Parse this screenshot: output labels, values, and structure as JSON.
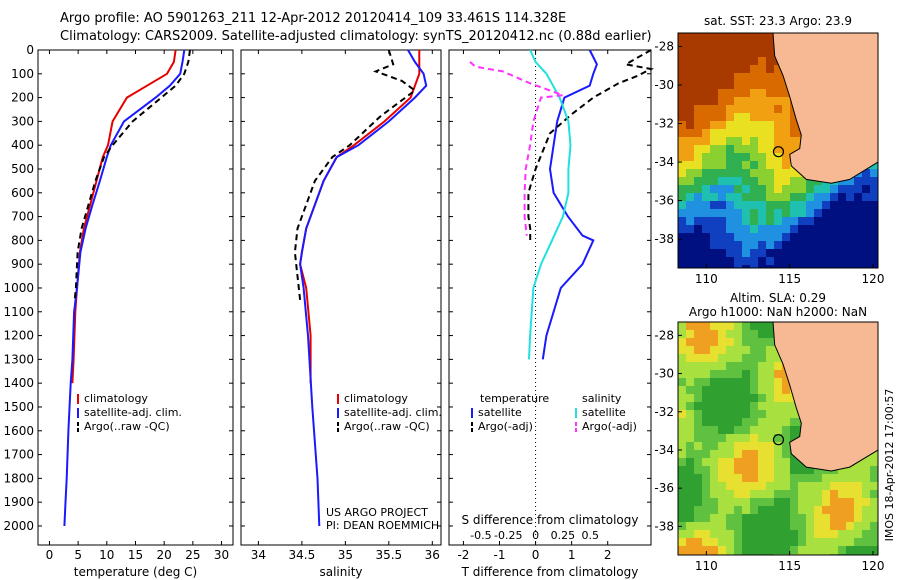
{
  "header": {
    "line1": "Argo profile: AO 5901263_211 12-Apr-2012 20120414_109 33.461S 114.328E",
    "line2": "Climatology: CARS2009. Satellite-adjusted climatology: synTS_20120412.nc (0.88d earlier)"
  },
  "credit": "IMOS 18-Apr-2012 17:00:57",
  "colors": {
    "climatology": "#e60000",
    "satellite": "#1a1aff",
    "argo": "#000000",
    "s_satellite": "#22e0e0",
    "s_argo": "#ff33ff"
  },
  "chart_data": [
    {
      "type": "line",
      "xlabel": "temperature (deg C)",
      "xlim": [
        -2,
        32
      ],
      "xticks": [
        "0",
        "5",
        "10",
        "15",
        "20",
        "25",
        "30"
      ],
      "ylim": [
        0,
        2080
      ],
      "yticks": [
        "0",
        "100",
        "200",
        "300",
        "400",
        "500",
        "600",
        "700",
        "800",
        "900",
        "1000",
        "1100",
        "1200",
        "1300",
        "1400",
        "1500",
        "1600",
        "1700",
        "1800",
        "1900",
        "2000"
      ],
      "legend": [
        "climatology",
        "satellite-adj. clim.",
        "Argo(..raw -QC)"
      ],
      "legend_placement": "lower-middle",
      "series": [
        {
          "name": "climatology",
          "color": "#e60000",
          "dash": "",
          "x": [
            22,
            21.7,
            20.5,
            17,
            13.5,
            11,
            10.2,
            9.3,
            8.2,
            7.1,
            6.0,
            5.3,
            4.8,
            4.5,
            4.2,
            4.0
          ],
          "y": [
            0,
            50,
            100,
            150,
            200,
            300,
            400,
            450,
            550,
            650,
            750,
            850,
            1000,
            1100,
            1300,
            1400
          ]
        },
        {
          "name": "satellite-adj. clim.",
          "color": "#1a1aff",
          "dash": "",
          "x": [
            23.5,
            23.2,
            22.8,
            21,
            18.5,
            13,
            10.7,
            10,
            8.8,
            7.5,
            6.3,
            5.4,
            4.8,
            4.3,
            4.0,
            3.7,
            3.3,
            3.0,
            2.8,
            2.6
          ],
          "y": [
            0,
            50,
            100,
            150,
            200,
            300,
            400,
            450,
            550,
            650,
            750,
            850,
            1000,
            1100,
            1300,
            1400,
            1600,
            1800,
            1900,
            2000
          ]
        },
        {
          "name": "Argo(..raw -QC)",
          "color": "#000000",
          "dash": "6,4",
          "x": [
            24.5,
            24.2,
            23.5,
            22,
            19.5,
            14.5,
            11,
            9.5,
            8.0,
            6.8,
            5.6,
            4.9,
            4.6,
            4.4
          ],
          "y": [
            0,
            50,
            100,
            150,
            200,
            300,
            400,
            450,
            550,
            650,
            750,
            850,
            1000,
            1050
          ]
        }
      ]
    },
    {
      "type": "line",
      "xlabel": "salinity",
      "xlim": [
        33.8,
        36.1
      ],
      "xticks": [
        "34",
        "34.5",
        "35",
        "35.5",
        "36"
      ],
      "ylim": [
        0,
        2080
      ],
      "legend": [
        "climatology",
        "satellite-adj. clim.",
        "Argo(..raw -QC)"
      ],
      "legend_placement": "lower-right",
      "annotations": [
        "US ARGO PROJECT",
        "PI: DEAN ROEMMICH"
      ],
      "series": [
        {
          "name": "climatology",
          "color": "#e60000",
          "dash": "",
          "x": [
            35.85,
            35.85,
            35.75,
            35.45,
            35.1,
            34.9,
            34.75,
            34.65,
            34.55,
            34.5,
            34.48,
            34.55,
            34.6,
            34.6
          ],
          "y": [
            0,
            100,
            200,
            300,
            400,
            450,
            550,
            650,
            750,
            850,
            900,
            1000,
            1200,
            1400
          ]
        },
        {
          "name": "satellite-adj. clim.",
          "color": "#1a1aff",
          "dash": "",
          "x": [
            35.72,
            35.8,
            35.9,
            35.93,
            35.8,
            35.5,
            35.15,
            34.9,
            34.75,
            34.65,
            34.55,
            34.5,
            34.48,
            34.52,
            34.57,
            34.62,
            34.68,
            34.7
          ],
          "y": [
            0,
            50,
            100,
            150,
            200,
            300,
            400,
            450,
            550,
            650,
            750,
            850,
            900,
            1000,
            1200,
            1500,
            1800,
            2000
          ]
        },
        {
          "name": "Argo(..raw -QC)",
          "color": "#000000",
          "dash": "6,4",
          "x": [
            35.5,
            35.55,
            35.35,
            35.65,
            35.8,
            35.4,
            35.05,
            34.85,
            34.65,
            34.55,
            34.45,
            34.42,
            34.45,
            34.48
          ],
          "y": [
            0,
            60,
            90,
            130,
            170,
            280,
            400,
            450,
            550,
            650,
            750,
            850,
            950,
            1050
          ]
        }
      ]
    },
    {
      "type": "line",
      "xlabel_top": "S difference from climatology",
      "xlabel": "T difference from climatology",
      "xlim_T": [
        -2.4,
        3.2
      ],
      "xticks_T": [
        "-2",
        "-1",
        "0",
        "1",
        "2"
      ],
      "xticks_S": [
        "-0.5",
        "-0.25",
        "0",
        "0.25",
        "0.5"
      ],
      "zero_line": "dotted",
      "ylim": [
        0,
        2080
      ],
      "legend_headers": [
        "temperature",
        "salinity"
      ],
      "legend": [
        "satellite",
        "Argo(-adj)",
        "satellite",
        "Argo(-adj)"
      ],
      "legend_placement": "lower",
      "series": [
        {
          "name": "satellite",
          "color": "#1a1aff",
          "dash": "",
          "x": [
            1.5,
            1.7,
            1.6,
            1.5,
            0.8,
            0.6,
            0.5,
            0.4,
            0.5,
            0.9,
            1.3,
            1.6,
            1.3,
            0.7,
            0.5,
            0.3,
            0.2
          ],
          "y": [
            0,
            60,
            100,
            150,
            200,
            300,
            400,
            500,
            600,
            700,
            780,
            800,
            900,
            1000,
            1100,
            1200,
            1300
          ]
        },
        {
          "name": "Argo(-adj)",
          "color": "#000000",
          "dash": "6,4",
          "x": [
            3.2,
            2.5,
            3.2,
            2.8,
            2.3,
            1.6,
            1.0,
            0.4,
            0.0,
            -0.2,
            -0.2,
            -0.15,
            -0.15
          ],
          "y": [
            0,
            60,
            80,
            110,
            140,
            200,
            270,
            350,
            500,
            600,
            700,
            750,
            800
          ]
        },
        {
          "name": "satellite",
          "color": "#22e0e0",
          "dash": "",
          "x": [
            -0.05,
            0.0,
            0.1,
            0.22,
            0.3,
            0.32,
            0.3,
            0.3,
            0.25,
            0.15,
            0.05,
            -0.02,
            -0.05,
            -0.06
          ],
          "y": [
            0,
            50,
            100,
            200,
            300,
            400,
            500,
            600,
            700,
            800,
            900,
            1000,
            1200,
            1300
          ]
        },
        {
          "name": "Argo(-adj)",
          "color": "#ff33ff",
          "dash": "6,4",
          "x": [
            -0.6,
            -0.55,
            -0.3,
            -0.05,
            0.25,
            0.05,
            -0.02,
            -0.05,
            -0.09,
            -0.1,
            -0.1,
            -0.08
          ],
          "y": [
            50,
            70,
            90,
            140,
            190,
            200,
            300,
            400,
            500,
            600,
            700,
            780
          ]
        }
      ]
    },
    {
      "type": "heatmap",
      "title": "sat. SST: 23.3 Argo: 23.9",
      "xticks": [
        "110",
        "115",
        "120"
      ],
      "yticks": [
        "-28",
        "-30",
        "-32",
        "-34",
        "-36",
        "-38"
      ],
      "xlim": [
        108.3,
        120.3
      ],
      "ylim": [
        -39.5,
        -27.3
      ],
      "marker": {
        "lon": 114.328,
        "lat": -33.461
      }
    },
    {
      "type": "heatmap",
      "title": "Altim. SLA: 0.29",
      "subtitle": "Argo h1000: NaN h2000: NaN",
      "xticks": [
        "110",
        "115",
        "120"
      ],
      "yticks": [
        "-28",
        "-30",
        "-32",
        "-34",
        "-36",
        "-38"
      ],
      "xlim": [
        108.3,
        120.3
      ],
      "ylim": [
        -39.5,
        -27.3
      ],
      "marker": {
        "lon": 114.328,
        "lat": -33.461
      }
    }
  ]
}
